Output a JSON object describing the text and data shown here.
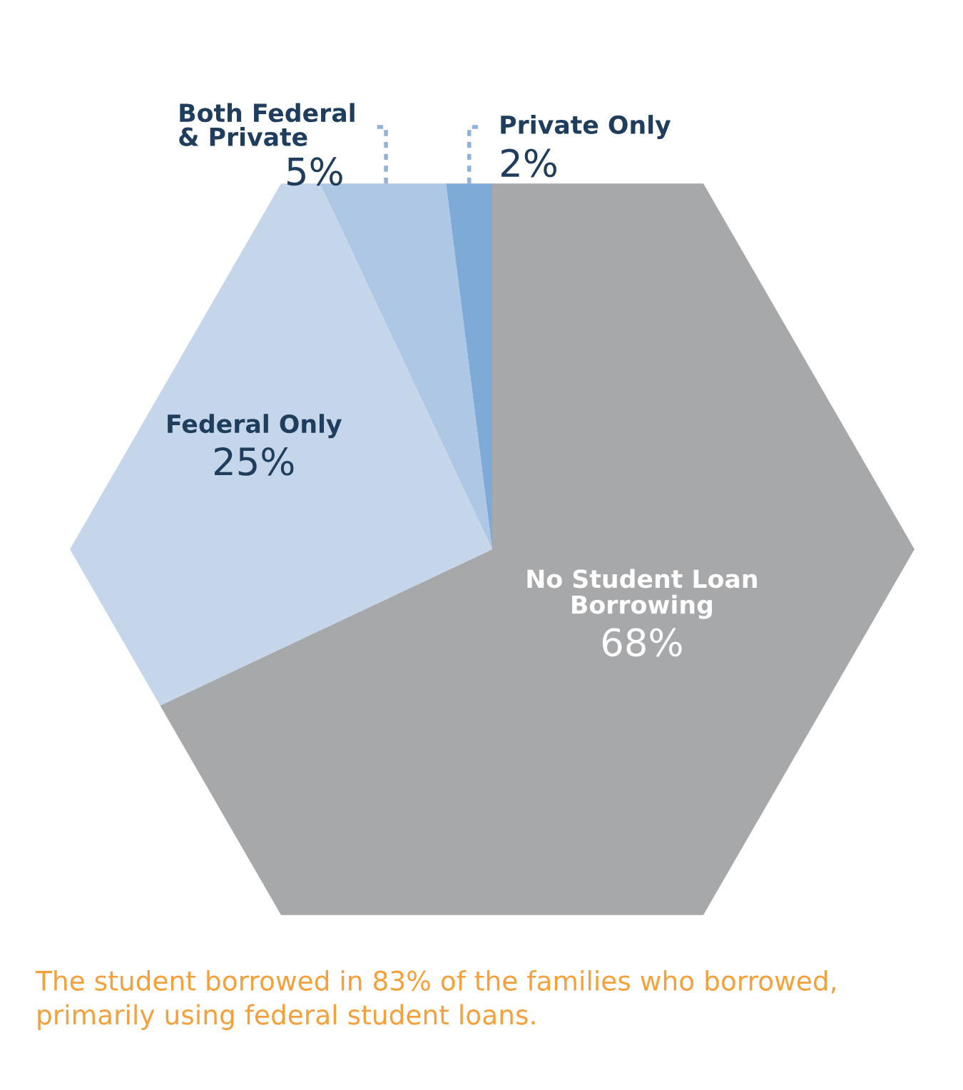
{
  "chart_data": {
    "type": "pie",
    "categories": [
      "No Student Loan\nBorrowing",
      "Federal Only",
      "Both Federal\n& Private",
      "Private Only"
    ],
    "values": [
      68,
      25,
      5,
      2
    ],
    "colors": [
      "#a7a8aa",
      "#c5d6eb",
      "#aec7e5",
      "#7eaad7"
    ],
    "value_labels": [
      "68%",
      "25%",
      "5%",
      "2%"
    ],
    "legend": false,
    "annotations": [
      "The student borrowed in 83% of the families who borrowed, primarily using federal student loans."
    ]
  }
}
